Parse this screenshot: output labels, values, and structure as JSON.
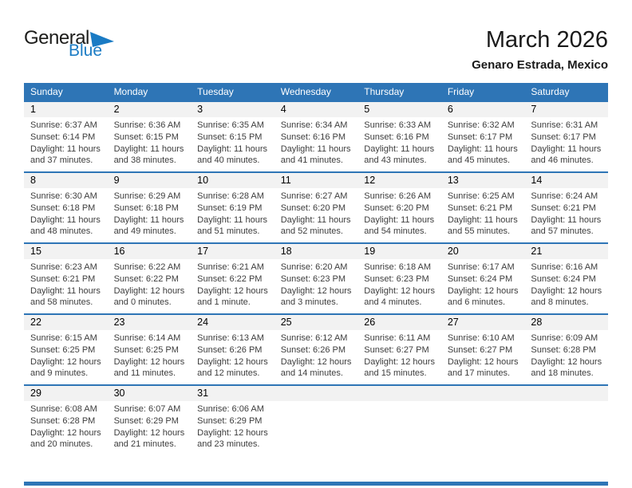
{
  "logo": {
    "general": "General",
    "blue": "Blue"
  },
  "header": {
    "title": "March 2026",
    "subtitle": "Genaro Estrada, Mexico"
  },
  "weekdays": [
    "Sunday",
    "Monday",
    "Tuesday",
    "Wednesday",
    "Thursday",
    "Friday",
    "Saturday"
  ],
  "weeks": [
    [
      {
        "day": "1",
        "sunrise": "Sunrise: 6:37 AM",
        "sunset": "Sunset: 6:14 PM",
        "daylight1": "Daylight: 11 hours",
        "daylight2": "and 37 minutes."
      },
      {
        "day": "2",
        "sunrise": "Sunrise: 6:36 AM",
        "sunset": "Sunset: 6:15 PM",
        "daylight1": "Daylight: 11 hours",
        "daylight2": "and 38 minutes."
      },
      {
        "day": "3",
        "sunrise": "Sunrise: 6:35 AM",
        "sunset": "Sunset: 6:15 PM",
        "daylight1": "Daylight: 11 hours",
        "daylight2": "and 40 minutes."
      },
      {
        "day": "4",
        "sunrise": "Sunrise: 6:34 AM",
        "sunset": "Sunset: 6:16 PM",
        "daylight1": "Daylight: 11 hours",
        "daylight2": "and 41 minutes."
      },
      {
        "day": "5",
        "sunrise": "Sunrise: 6:33 AM",
        "sunset": "Sunset: 6:16 PM",
        "daylight1": "Daylight: 11 hours",
        "daylight2": "and 43 minutes."
      },
      {
        "day": "6",
        "sunrise": "Sunrise: 6:32 AM",
        "sunset": "Sunset: 6:17 PM",
        "daylight1": "Daylight: 11 hours",
        "daylight2": "and 45 minutes."
      },
      {
        "day": "7",
        "sunrise": "Sunrise: 6:31 AM",
        "sunset": "Sunset: 6:17 PM",
        "daylight1": "Daylight: 11 hours",
        "daylight2": "and 46 minutes."
      }
    ],
    [
      {
        "day": "8",
        "sunrise": "Sunrise: 6:30 AM",
        "sunset": "Sunset: 6:18 PM",
        "daylight1": "Daylight: 11 hours",
        "daylight2": "and 48 minutes."
      },
      {
        "day": "9",
        "sunrise": "Sunrise: 6:29 AM",
        "sunset": "Sunset: 6:18 PM",
        "daylight1": "Daylight: 11 hours",
        "daylight2": "and 49 minutes."
      },
      {
        "day": "10",
        "sunrise": "Sunrise: 6:28 AM",
        "sunset": "Sunset: 6:19 PM",
        "daylight1": "Daylight: 11 hours",
        "daylight2": "and 51 minutes."
      },
      {
        "day": "11",
        "sunrise": "Sunrise: 6:27 AM",
        "sunset": "Sunset: 6:20 PM",
        "daylight1": "Daylight: 11 hours",
        "daylight2": "and 52 minutes."
      },
      {
        "day": "12",
        "sunrise": "Sunrise: 6:26 AM",
        "sunset": "Sunset: 6:20 PM",
        "daylight1": "Daylight: 11 hours",
        "daylight2": "and 54 minutes."
      },
      {
        "day": "13",
        "sunrise": "Sunrise: 6:25 AM",
        "sunset": "Sunset: 6:21 PM",
        "daylight1": "Daylight: 11 hours",
        "daylight2": "and 55 minutes."
      },
      {
        "day": "14",
        "sunrise": "Sunrise: 6:24 AM",
        "sunset": "Sunset: 6:21 PM",
        "daylight1": "Daylight: 11 hours",
        "daylight2": "and 57 minutes."
      }
    ],
    [
      {
        "day": "15",
        "sunrise": "Sunrise: 6:23 AM",
        "sunset": "Sunset: 6:21 PM",
        "daylight1": "Daylight: 11 hours",
        "daylight2": "and 58 minutes."
      },
      {
        "day": "16",
        "sunrise": "Sunrise: 6:22 AM",
        "sunset": "Sunset: 6:22 PM",
        "daylight1": "Daylight: 12 hours",
        "daylight2": "and 0 minutes."
      },
      {
        "day": "17",
        "sunrise": "Sunrise: 6:21 AM",
        "sunset": "Sunset: 6:22 PM",
        "daylight1": "Daylight: 12 hours",
        "daylight2": "and 1 minute."
      },
      {
        "day": "18",
        "sunrise": "Sunrise: 6:20 AM",
        "sunset": "Sunset: 6:23 PM",
        "daylight1": "Daylight: 12 hours",
        "daylight2": "and 3 minutes."
      },
      {
        "day": "19",
        "sunrise": "Sunrise: 6:18 AM",
        "sunset": "Sunset: 6:23 PM",
        "daylight1": "Daylight: 12 hours",
        "daylight2": "and 4 minutes."
      },
      {
        "day": "20",
        "sunrise": "Sunrise: 6:17 AM",
        "sunset": "Sunset: 6:24 PM",
        "daylight1": "Daylight: 12 hours",
        "daylight2": "and 6 minutes."
      },
      {
        "day": "21",
        "sunrise": "Sunrise: 6:16 AM",
        "sunset": "Sunset: 6:24 PM",
        "daylight1": "Daylight: 12 hours",
        "daylight2": "and 8 minutes."
      }
    ],
    [
      {
        "day": "22",
        "sunrise": "Sunrise: 6:15 AM",
        "sunset": "Sunset: 6:25 PM",
        "daylight1": "Daylight: 12 hours",
        "daylight2": "and 9 minutes."
      },
      {
        "day": "23",
        "sunrise": "Sunrise: 6:14 AM",
        "sunset": "Sunset: 6:25 PM",
        "daylight1": "Daylight: 12 hours",
        "daylight2": "and 11 minutes."
      },
      {
        "day": "24",
        "sunrise": "Sunrise: 6:13 AM",
        "sunset": "Sunset: 6:26 PM",
        "daylight1": "Daylight: 12 hours",
        "daylight2": "and 12 minutes."
      },
      {
        "day": "25",
        "sunrise": "Sunrise: 6:12 AM",
        "sunset": "Sunset: 6:26 PM",
        "daylight1": "Daylight: 12 hours",
        "daylight2": "and 14 minutes."
      },
      {
        "day": "26",
        "sunrise": "Sunrise: 6:11 AM",
        "sunset": "Sunset: 6:27 PM",
        "daylight1": "Daylight: 12 hours",
        "daylight2": "and 15 minutes."
      },
      {
        "day": "27",
        "sunrise": "Sunrise: 6:10 AM",
        "sunset": "Sunset: 6:27 PM",
        "daylight1": "Daylight: 12 hours",
        "daylight2": "and 17 minutes."
      },
      {
        "day": "28",
        "sunrise": "Sunrise: 6:09 AM",
        "sunset": "Sunset: 6:28 PM",
        "daylight1": "Daylight: 12 hours",
        "daylight2": "and 18 minutes."
      }
    ],
    [
      {
        "day": "29",
        "sunrise": "Sunrise: 6:08 AM",
        "sunset": "Sunset: 6:28 PM",
        "daylight1": "Daylight: 12 hours",
        "daylight2": "and 20 minutes."
      },
      {
        "day": "30",
        "sunrise": "Sunrise: 6:07 AM",
        "sunset": "Sunset: 6:29 PM",
        "daylight1": "Daylight: 12 hours",
        "daylight2": "and 21 minutes."
      },
      {
        "day": "31",
        "sunrise": "Sunrise: 6:06 AM",
        "sunset": "Sunset: 6:29 PM",
        "daylight1": "Daylight: 12 hours",
        "daylight2": "and 23 minutes."
      },
      {
        "day": "",
        "sunrise": "",
        "sunset": "",
        "daylight1": "",
        "daylight2": ""
      },
      {
        "day": "",
        "sunrise": "",
        "sunset": "",
        "daylight1": "",
        "daylight2": ""
      },
      {
        "day": "",
        "sunrise": "",
        "sunset": "",
        "daylight1": "",
        "daylight2": ""
      },
      {
        "day": "",
        "sunrise": "",
        "sunset": "",
        "daylight1": "",
        "daylight2": ""
      }
    ]
  ],
  "colors": {
    "header_blue": "#2e75b6",
    "band_gray": "#f2f2f2",
    "logo_blue": "#1a7bc4",
    "text_dark": "#1a1a1a",
    "detail_gray": "#3d3d3d"
  }
}
